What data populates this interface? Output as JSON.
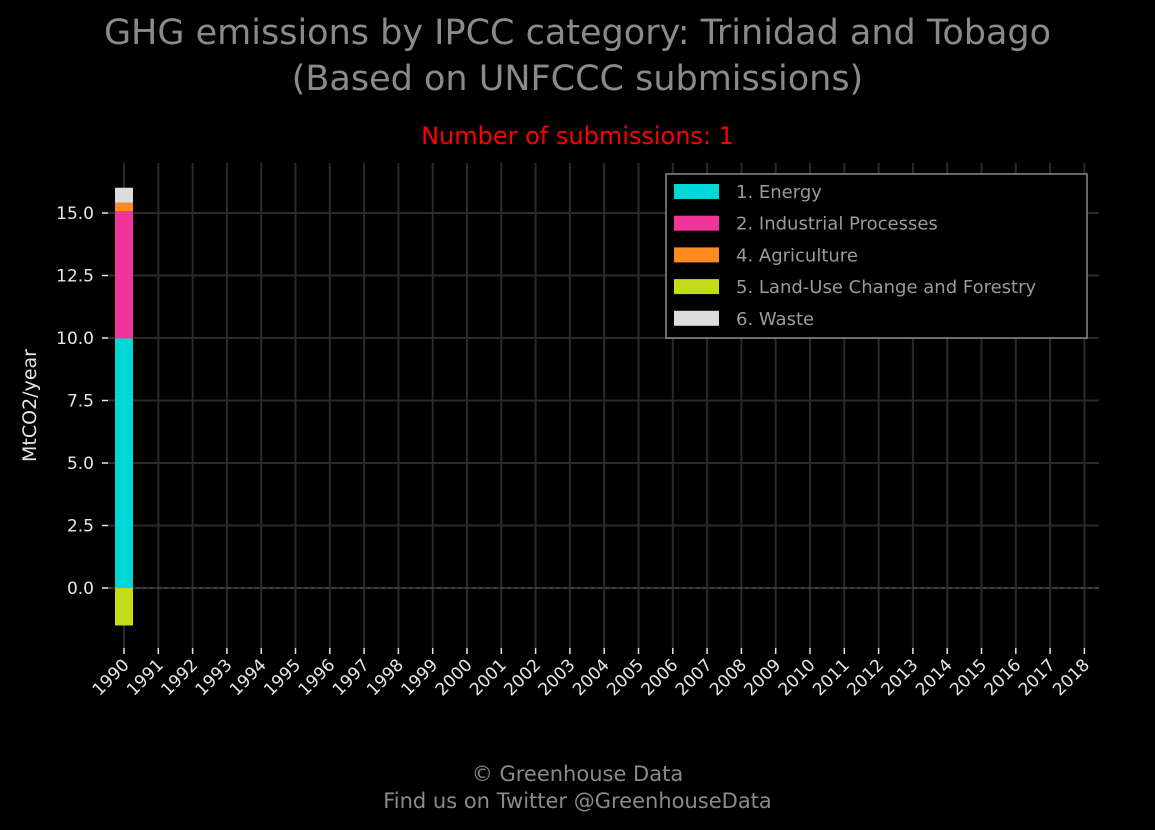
{
  "title_line1": "GHG emissions by IPCC category: Trinidad and Tobago",
  "title_line2": "(Based on UNFCCC submissions)",
  "subtitle": "Number of submissions: 1",
  "footer_line1": "© Greenhouse Data",
  "footer_line2": "Find us on Twitter @GreenhouseData",
  "colors": {
    "background": "#000000",
    "grid": "#2a2a2a",
    "title": "#8a8a8a",
    "subtitle": "#ff0000",
    "legend_border": "#8a8a8a"
  },
  "chart_data": {
    "type": "bar",
    "stacked": true,
    "title": "GHG emissions by IPCC category: Trinidad and Tobago",
    "subtitle": "Number of submissions: 1",
    "xlabel": "",
    "ylabel": "MtCO2/year",
    "categories": [
      "1990",
      "1991",
      "1992",
      "1993",
      "1994",
      "1995",
      "1996",
      "1997",
      "1998",
      "1999",
      "2000",
      "2001",
      "2002",
      "2003",
      "2004",
      "2005",
      "2006",
      "2007",
      "2008",
      "2009",
      "2010",
      "2011",
      "2012",
      "2013",
      "2014",
      "2015",
      "2016",
      "2017",
      "2018"
    ],
    "yticks": [
      "0.0",
      "2.5",
      "5.0",
      "7.5",
      "10.0",
      "12.5",
      "15.0"
    ],
    "ylim": [
      -2.4,
      17.0
    ],
    "grid": true,
    "legend_position": "top-right",
    "series": [
      {
        "name": "1. Energy",
        "color": "#00d7d7",
        "values": [
          9.98,
          0,
          0,
          0,
          0,
          0,
          0,
          0,
          0,
          0,
          0,
          0,
          0,
          0,
          0,
          0,
          0,
          0,
          0,
          0,
          0,
          0,
          0,
          0,
          0,
          0,
          0,
          0,
          0
        ]
      },
      {
        "name": "2. Industrial Processes",
        "color": "#f0359a",
        "values": [
          5.1,
          0,
          0,
          0,
          0,
          0,
          0,
          0,
          0,
          0,
          0,
          0,
          0,
          0,
          0,
          0,
          0,
          0,
          0,
          0,
          0,
          0,
          0,
          0,
          0,
          0,
          0,
          0,
          0
        ]
      },
      {
        "name": "4. Agriculture",
        "color": "#ff8a1f",
        "values": [
          0.33,
          0,
          0,
          0,
          0,
          0,
          0,
          0,
          0,
          0,
          0,
          0,
          0,
          0,
          0,
          0,
          0,
          0,
          0,
          0,
          0,
          0,
          0,
          0,
          0,
          0,
          0,
          0,
          0
        ]
      },
      {
        "name": "5. Land-Use Change and Forestry",
        "color": "#c2dc1a",
        "values": [
          -1.5,
          0,
          0,
          0,
          0,
          0,
          0,
          0,
          0,
          0,
          0,
          0,
          0,
          0,
          0,
          0,
          0,
          0,
          0,
          0,
          0,
          0,
          0,
          0,
          0,
          0,
          0,
          0,
          0
        ]
      },
      {
        "name": "6. Waste",
        "color": "#dddddd",
        "values": [
          0.6,
          0,
          0,
          0,
          0,
          0,
          0,
          0,
          0,
          0,
          0,
          0,
          0,
          0,
          0,
          0,
          0,
          0,
          0,
          0,
          0,
          0,
          0,
          0,
          0,
          0,
          0,
          0,
          0
        ]
      }
    ]
  }
}
